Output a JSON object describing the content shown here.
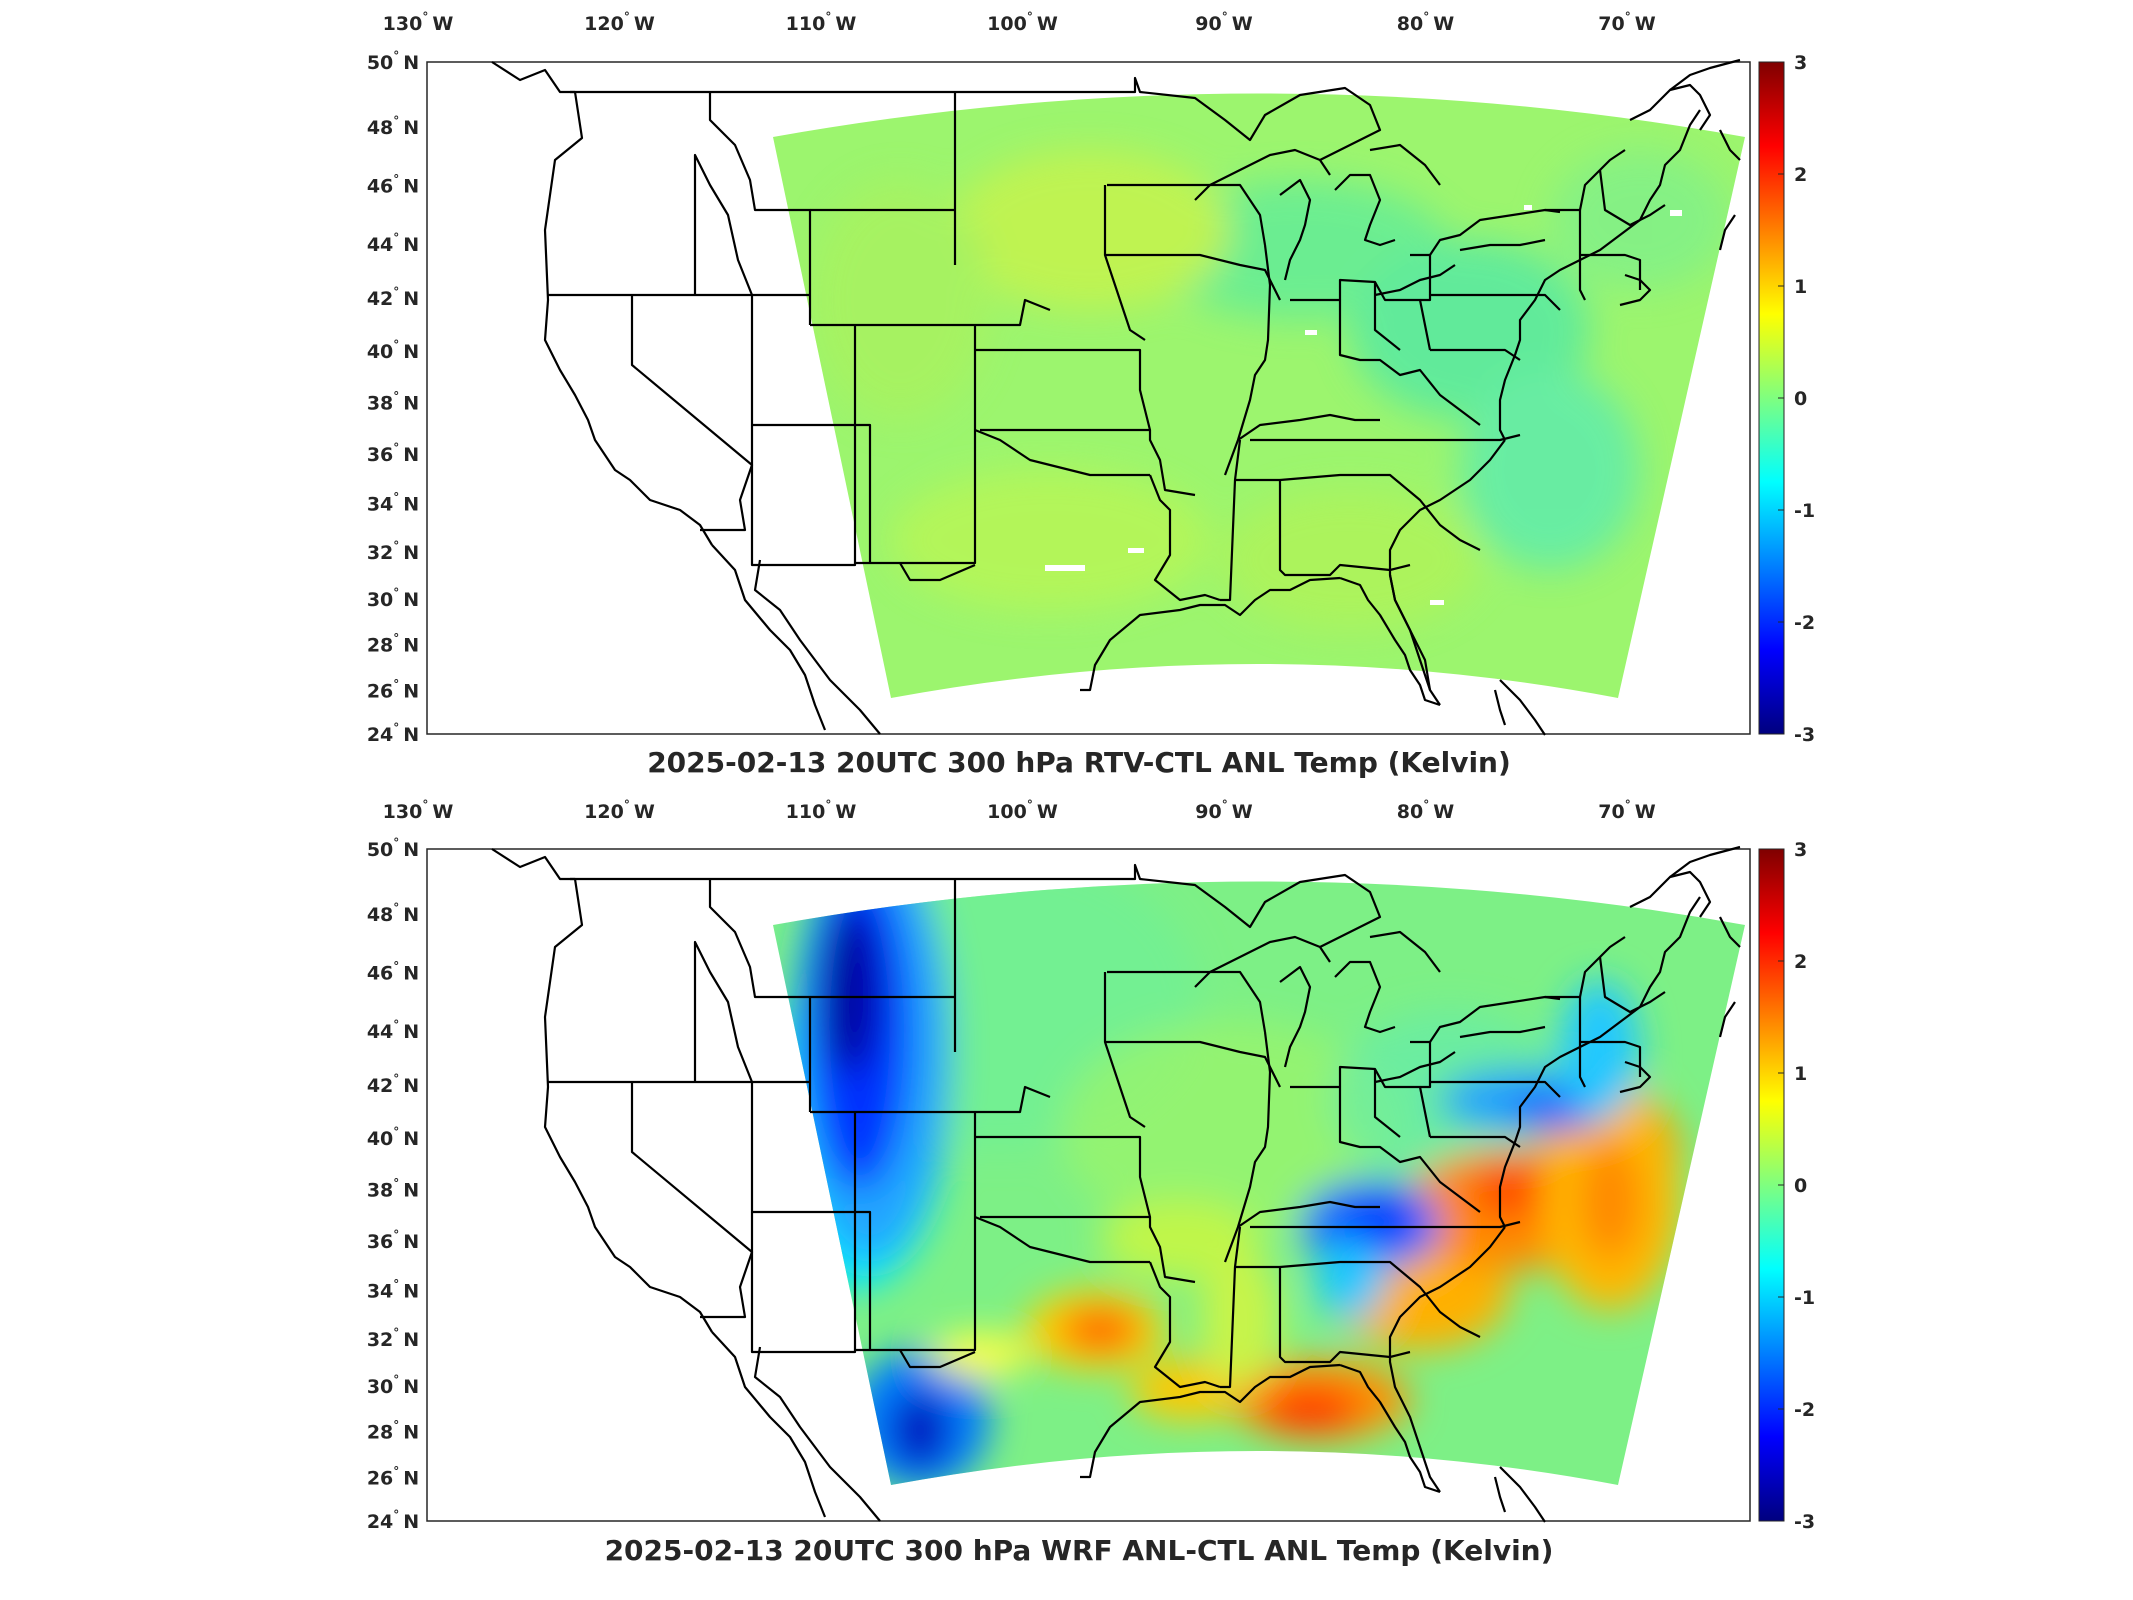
{
  "figure": {
    "colormap": [
      "#00007f",
      "#0000ff",
      "#007fff",
      "#00ffff",
      "#7fff7f",
      "#ffff00",
      "#ff7f00",
      "#ff0000",
      "#7f0000"
    ],
    "lon_ticks": [
      {
        "value": -130,
        "label": "130",
        "hemi": "W"
      },
      {
        "value": -120,
        "label": "120",
        "hemi": "W"
      },
      {
        "value": -110,
        "label": "110",
        "hemi": "W"
      },
      {
        "value": -100,
        "label": "100",
        "hemi": "W"
      },
      {
        "value": -90,
        "label": "90",
        "hemi": "W"
      },
      {
        "value": -80,
        "label": "80",
        "hemi": "W"
      },
      {
        "value": -70,
        "label": "70",
        "hemi": "W"
      }
    ],
    "lat_ticks": [
      {
        "value": 50,
        "label": "50",
        "hemi": "N"
      },
      {
        "value": 48,
        "label": "48",
        "hemi": "N"
      },
      {
        "value": 46,
        "label": "46",
        "hemi": "N"
      },
      {
        "value": 44,
        "label": "44",
        "hemi": "N"
      },
      {
        "value": 42,
        "label": "42",
        "hemi": "N"
      },
      {
        "value": 40,
        "label": "40",
        "hemi": "N"
      },
      {
        "value": 38,
        "label": "38",
        "hemi": "N"
      },
      {
        "value": 36,
        "label": "36",
        "hemi": "N"
      },
      {
        "value": 34,
        "label": "34",
        "hemi": "N"
      },
      {
        "value": 32,
        "label": "32",
        "hemi": "N"
      },
      {
        "value": 30,
        "label": "30",
        "hemi": "N"
      },
      {
        "value": 28,
        "label": "28",
        "hemi": "N"
      },
      {
        "value": 26,
        "label": "26",
        "hemi": "N"
      },
      {
        "value": 24,
        "label": "24",
        "hemi": "N"
      }
    ],
    "colorbar_ticks": [
      "3",
      "2",
      "1",
      "0",
      "-1",
      "-2",
      "-3"
    ],
    "colorbar_range": [
      -3,
      3
    ]
  },
  "panels": [
    {
      "title": "2025-02-13 20UTC 300 hPa RTV-CTL ANL Temp (Kelvin)",
      "field_summary": "near zero everywhere (about 0 to 0.5 K)"
    },
    {
      "title": "2025-02-13 20UTC 300 hPa WRF ANL-CTL ANL Temp (Kelvin)",
      "field_summary": "cold anomaly near -3 K over Idaho/Wyoming, warm anomalies up to about 2 K over Texas, Gulf coast and Carolinas"
    }
  ]
}
